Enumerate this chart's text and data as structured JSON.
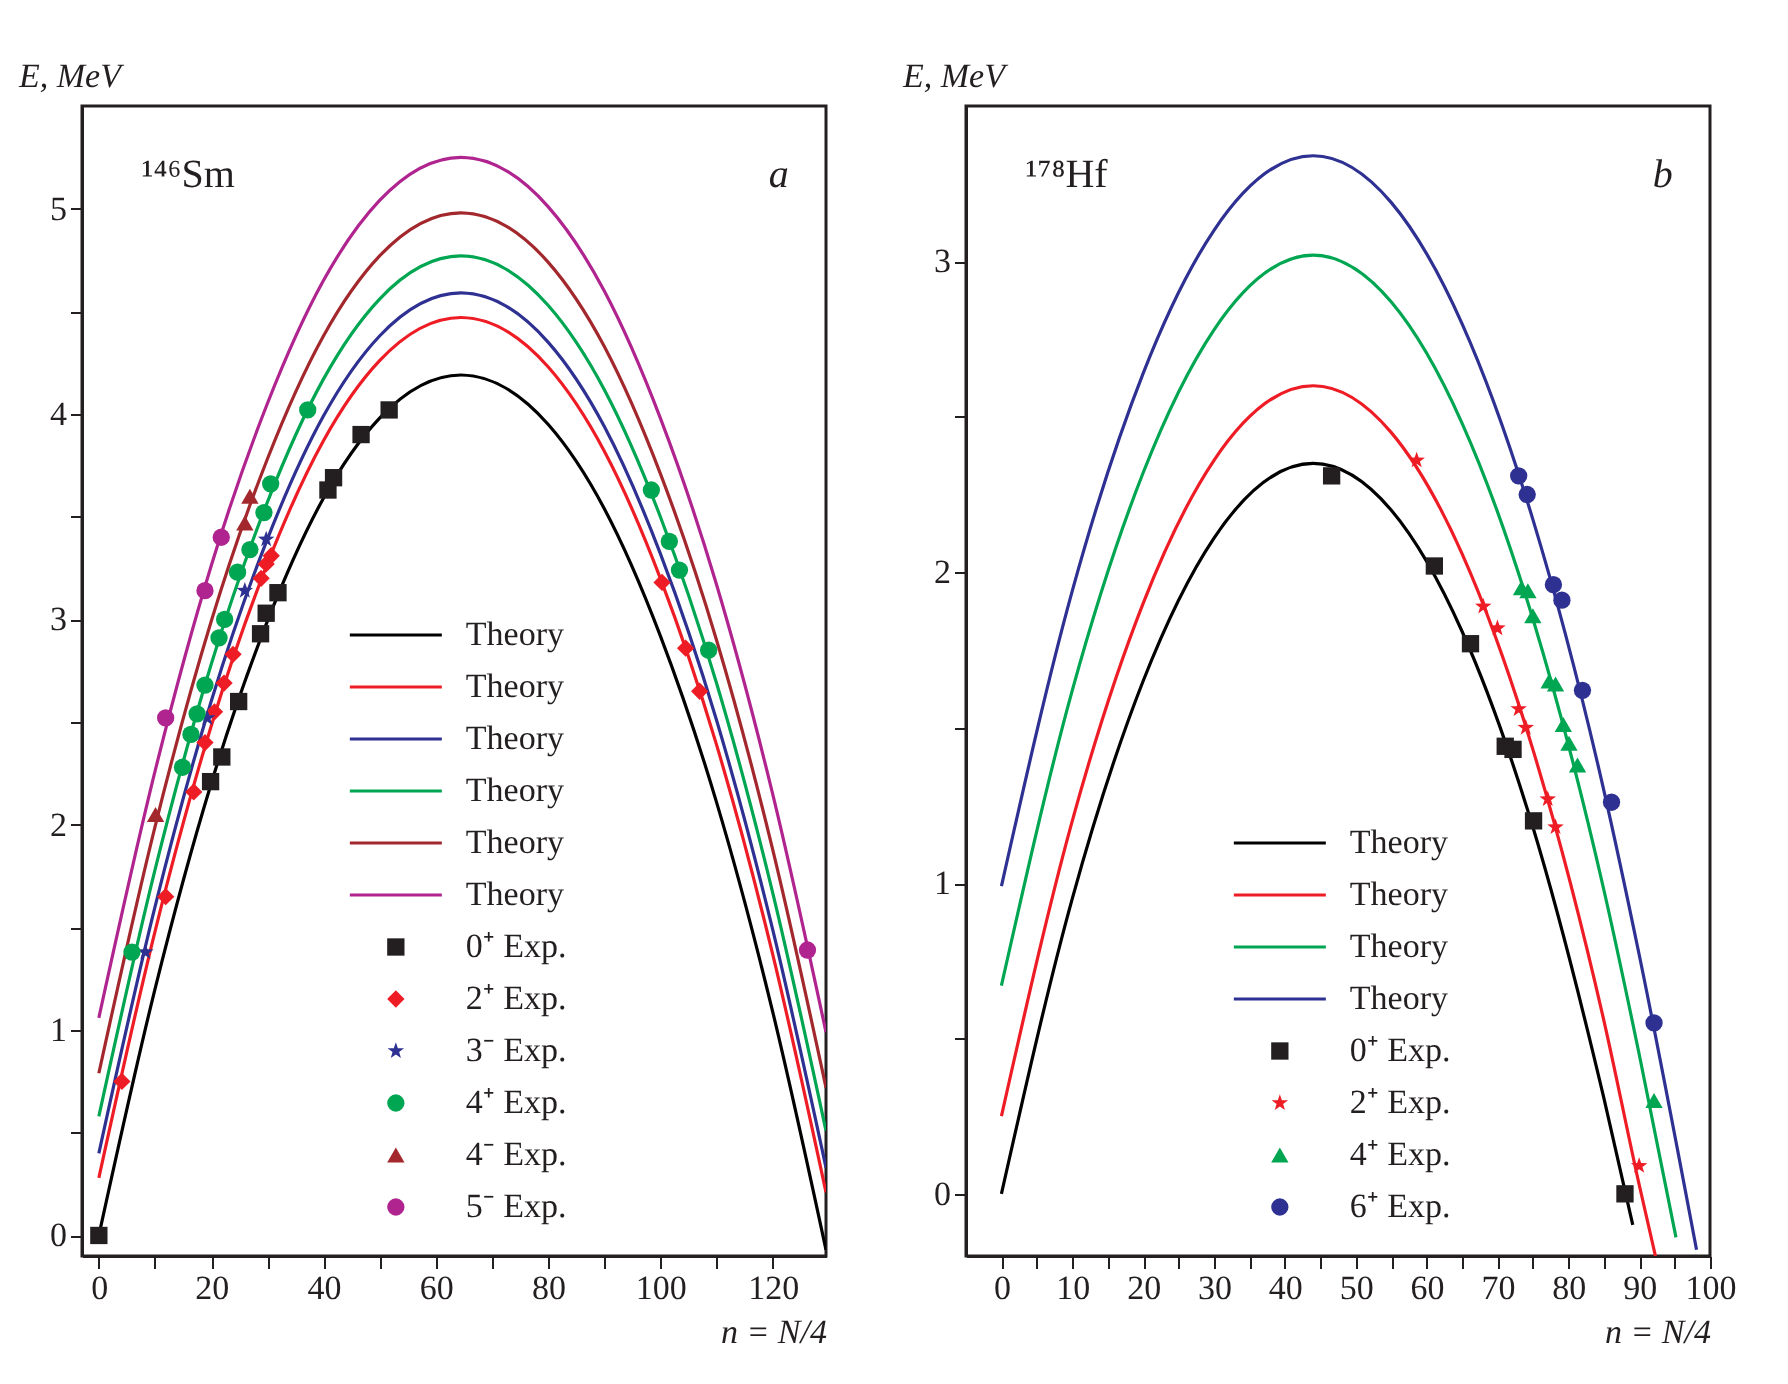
{
  "chart_data": [
    {
      "type": "line",
      "xlabel": "n = N/4",
      "ylabel": "E, MeV",
      "annotations": [
        "¹⁴⁶Sm",
        "a"
      ],
      "xlim": [
        -3,
        129.5
      ],
      "ylim": [
        -0.1,
        5.5
      ],
      "xticks": [
        0,
        20,
        40,
        60,
        80,
        100,
        120,
        {
          "value": 10,
          "label": null
        },
        {
          "value": 30,
          "label": null
        },
        {
          "value": 50,
          "label": null
        },
        {
          "value": 70,
          "label": null
        },
        {
          "value": 90,
          "label": null
        },
        {
          "value": 110,
          "label": null
        }
      ],
      "yticks": [
        0,
        1,
        2,
        3,
        4,
        5,
        {
          "value": 0.5,
          "label": null
        },
        {
          "value": 1.5,
          "label": null
        },
        {
          "value": 2.5,
          "label": null
        },
        {
          "value": 3.5,
          "label": null
        },
        {
          "value": 4.5,
          "label": null
        }
      ],
      "grid": false,
      "legend": "bottom",
      "series": [
        {
          "name": "Theory",
          "color": "#000000",
          "x": [
            0,
            10,
            20,
            30,
            40,
            50,
            64.5,
            80,
            90,
            100,
            110,
            120,
            129.5
          ],
          "values": [
            0,
            1.2,
            2.2,
            2.99,
            3.59,
            3.98,
            4.19,
            3.95,
            3.54,
            2.92,
            2.11,
            1.09,
            -0.07
          ]
        },
        {
          "name": "Theory",
          "color": "#ee1c25",
          "x": [
            0,
            10,
            20,
            30,
            40,
            50,
            64.5,
            80,
            90,
            100,
            110,
            120,
            129.5
          ],
          "values": [
            0.28,
            1.48,
            2.48,
            3.27,
            3.87,
            4.26,
            4.47,
            4.23,
            3.82,
            3.2,
            2.39,
            1.37,
            0.21
          ]
        },
        {
          "name": "Theory",
          "color": "#2e3192",
          "x": [
            0,
            10,
            20,
            30,
            40,
            50,
            64.5,
            80,
            90,
            100,
            110,
            120,
            129.5
          ],
          "values": [
            0.4,
            1.6,
            2.6,
            3.39,
            3.99,
            4.38,
            4.59,
            4.35,
            3.94,
            3.32,
            2.51,
            1.49,
            0.33
          ]
        },
        {
          "name": "Theory",
          "color": "#00a651",
          "x": [
            0,
            10,
            20,
            30,
            40,
            50,
            64.5,
            80,
            90,
            100,
            110,
            120,
            129.5
          ],
          "values": [
            0.58,
            1.78,
            2.78,
            3.57,
            4.17,
            4.56,
            4.77,
            4.53,
            4.12,
            3.5,
            2.69,
            1.67,
            0.51
          ]
        },
        {
          "name": "Theory",
          "color": "#a3282d",
          "x": [
            0,
            10,
            20,
            30,
            40,
            50,
            64.5,
            80,
            90,
            100,
            110,
            120,
            129.5
          ],
          "values": [
            0.79,
            1.99,
            2.99,
            3.78,
            4.38,
            4.77,
            4.98,
            4.74,
            4.33,
            3.71,
            2.9,
            1.88,
            0.72
          ]
        },
        {
          "name": "Theory",
          "color": "#b0248f",
          "x": [
            0,
            10,
            20,
            30,
            40,
            50,
            64.5,
            80,
            90,
            100,
            110,
            120,
            129.5
          ],
          "values": [
            1.06,
            2.26,
            3.26,
            4.05,
            4.65,
            5.04,
            5.25,
            5.01,
            4.6,
            3.98,
            3.17,
            2.15,
            0.99
          ]
        },
        {
          "name": "0⁺ Exp.",
          "type": "scatter",
          "marker": "square",
          "color": "#231f20",
          "x": [
            0,
            19.9,
            21.9,
            24.9,
            28.8,
            29.8,
            31.9,
            40.8,
            41.8,
            46.7,
            51.7
          ],
          "values": [
            0,
            2.21,
            2.33,
            2.6,
            2.93,
            3.03,
            3.13,
            3.63,
            3.69,
            3.9,
            4.02
          ]
        },
        {
          "name": "2⁺ Exp.",
          "type": "scatter",
          "marker": "diamond",
          "color": "#ee1c25",
          "x": [
            4.1,
            11.9,
            16.9,
            18.9,
            20.6,
            22.3,
            23.9,
            28.9,
            29.8,
            30.7,
            100.3,
            104.5,
            107
          ],
          "values": [
            0.75,
            1.65,
            2.16,
            2.4,
            2.55,
            2.69,
            2.83,
            3.2,
            3.27,
            3.31,
            3.18,
            2.86,
            2.65
          ]
        },
        {
          "name": "3⁻ Exp.",
          "type": "scatter",
          "marker": "star",
          "color": "#2e3192",
          "x": [
            8.3,
            19.3,
            26,
            29.8
          ],
          "values": [
            1.38,
            2.52,
            3.14,
            3.39
          ]
        },
        {
          "name": "4⁺ Exp.",
          "type": "scatter",
          "marker": "circle",
          "color": "#00a651",
          "x": [
            5.9,
            14.9,
            16.4,
            17.5,
            18.9,
            21.4,
            22.4,
            24.7,
            26.9,
            29.4,
            30.6,
            37.2,
            98.4,
            101.6,
            103.4,
            108.6
          ],
          "values": [
            1.38,
            2.28,
            2.44,
            2.54,
            2.68,
            2.91,
            3,
            3.23,
            3.34,
            3.52,
            3.66,
            4.02,
            3.63,
            3.38,
            3.24,
            2.85
          ]
        },
        {
          "name": "4⁻ Exp.",
          "type": "scatter",
          "marker": "triangle",
          "color": "#a3282d",
          "x": [
            10.1,
            26,
            26.9
          ],
          "values": [
            2.05,
            3.47,
            3.6
          ]
        },
        {
          "name": "5⁻ Exp.",
          "type": "scatter",
          "marker": "circle",
          "color": "#b0248f",
          "x": [
            11.9,
            18.9,
            21.8,
            126.2
          ],
          "values": [
            2.52,
            3.14,
            3.4,
            1.39
          ]
        }
      ]
    },
    {
      "type": "line",
      "xlabel": "n = N/4",
      "ylabel": "E, MeV",
      "annotations": [
        "¹⁷⁸Hf",
        "b"
      ],
      "xlim": [
        -5,
        100
      ],
      "ylim": [
        -0.2,
        3.5
      ],
      "xticks": [
        0,
        10,
        20,
        30,
        40,
        50,
        60,
        70,
        80,
        90,
        100,
        {
          "value": 5,
          "label": null
        },
        {
          "value": 15,
          "label": null
        },
        {
          "value": 25,
          "label": null
        },
        {
          "value": 35,
          "label": null
        },
        {
          "value": 45,
          "label": null
        },
        {
          "value": 55,
          "label": null
        },
        {
          "value": 65,
          "label": null
        },
        {
          "value": 75,
          "label": null
        },
        {
          "value": 85,
          "label": null
        },
        {
          "value": 95,
          "label": null
        }
      ],
      "yticks": [
        0,
        1,
        2,
        3,
        {
          "value": 0.5,
          "label": null
        },
        {
          "value": 1.5,
          "label": null
        },
        {
          "value": 2.5,
          "label": null
        }
      ],
      "grid": false,
      "legend": "bottom",
      "series": [
        {
          "name": "Theory",
          "color": "#000000",
          "x": [
            0,
            10,
            20,
            30,
            44,
            55,
            65,
            75,
            85,
            89.1
          ],
          "values": [
            0,
            0.95,
            1.65,
            2.11,
            2.35,
            2.2,
            1.81,
            1.18,
            0.31,
            -0.1
          ]
        },
        {
          "name": "Theory",
          "color": "#ee1c25",
          "x": [
            0,
            10,
            20,
            30,
            44,
            55,
            65,
            75,
            85,
            90,
            92.3
          ],
          "values": [
            0.25,
            1.2,
            1.9,
            2.36,
            2.6,
            2.45,
            2.06,
            1.43,
            0.56,
            0.03,
            -0.2
          ]
        },
        {
          "name": "Theory",
          "color": "#00a651",
          "x": [
            0,
            10,
            20,
            30,
            44,
            55,
            65,
            75,
            85,
            90,
            95.2
          ],
          "values": [
            0.67,
            1.62,
            2.32,
            2.78,
            3.02,
            2.87,
            2.48,
            1.85,
            0.98,
            0.45,
            -0.14
          ]
        },
        {
          "name": "Theory",
          "color": "#2e3192",
          "x": [
            0,
            10,
            20,
            30,
            44,
            55,
            65,
            75,
            85,
            90,
            98.1
          ],
          "values": [
            0.99,
            1.94,
            2.64,
            3.1,
            3.34,
            3.19,
            2.8,
            2.17,
            1.3,
            0.77,
            -0.18
          ]
        },
        {
          "name": "0⁺ Exp.",
          "type": "scatter",
          "marker": "square",
          "color": "#231f20",
          "x": [
            46.6,
            61.1,
            66.2,
            71.1,
            72.2,
            75.1,
            88
          ],
          "values": [
            2.31,
            2.02,
            1.77,
            1.44,
            1.43,
            1.2,
            0
          ]
        },
        {
          "name": "2⁺ Exp.",
          "type": "scatter",
          "marker": "star",
          "color": "#ee1c25",
          "x": [
            58.6,
            68,
            70,
            73,
            74,
            77.1,
            78.2,
            90
          ],
          "values": [
            2.36,
            1.89,
            1.82,
            1.56,
            1.5,
            1.27,
            1.18,
            0.09
          ]
        },
        {
          "name": "4⁺ Exp.",
          "type": "scatter",
          "marker": "triangle",
          "color": "#00a651",
          "x": [
            73.4,
            74.3,
            75,
            77.3,
            78.2,
            79.3,
            80.1,
            81.3,
            92.1
          ],
          "values": [
            1.95,
            1.94,
            1.86,
            1.65,
            1.64,
            1.51,
            1.45,
            1.38,
            0.3
          ]
        },
        {
          "name": "6⁺ Exp.",
          "type": "scatter",
          "marker": "circle",
          "color": "#2e3192",
          "x": [
            73,
            74.2,
            77.9,
            79.1,
            82,
            86.1,
            92.1
          ],
          "values": [
            2.31,
            2.25,
            1.96,
            1.91,
            1.62,
            1.26,
            0.55
          ]
        }
      ]
    }
  ]
}
